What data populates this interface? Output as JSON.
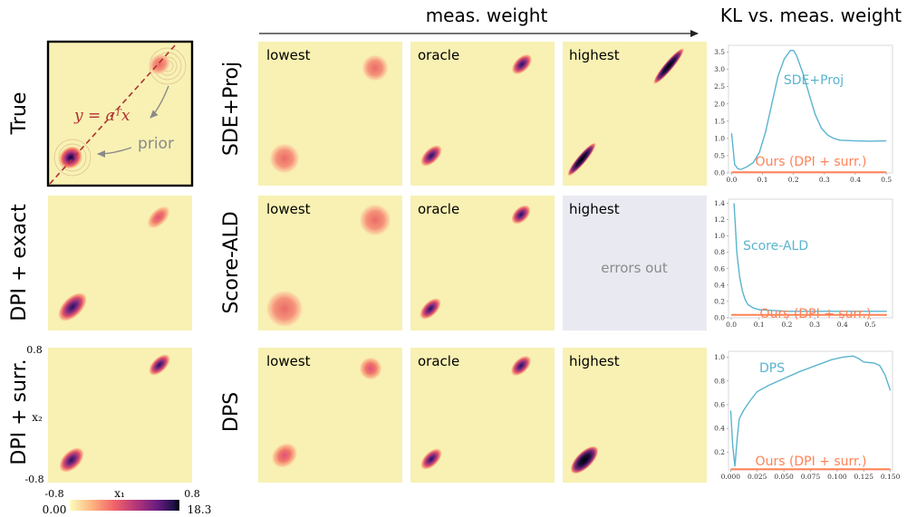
{
  "header": {
    "meas_weight_label": "meas. weight",
    "kl_title": "KL vs. meas. weight"
  },
  "true_panel": {
    "row_label": "True",
    "equation": "y = aᵀx",
    "prior_label": "prior"
  },
  "left_rows": [
    "True",
    "DPI + exact",
    "DPI + surr."
  ],
  "method_rows": [
    "SDE+Proj",
    "Score-ALD",
    "DPS"
  ],
  "column_labels": [
    "lowest",
    "oracle",
    "highest"
  ],
  "error_text": "errors out",
  "axes": {
    "x_label": "x₁",
    "y_label": "x₂",
    "x_min_label": "-0.8",
    "x_max_label": "0.8",
    "y_min_label": "-0.8",
    "y_max_label": "0.8"
  },
  "colorbar": {
    "min_label": "0.00",
    "max_label": "18.3"
  },
  "colors": {
    "panel_bg": "#f8f1b3",
    "error_bg": "#e9e9f2",
    "baseline_line": "#ff8256",
    "method_line": "#5ab4cf",
    "equation_color": "#b03030",
    "annotation_gray": "#8a8a8a"
  },
  "chart_data": [
    {
      "type": "line",
      "title": "",
      "ylim": [
        0,
        3.7
      ],
      "xlim": [
        -0.01,
        0.52
      ],
      "x_ticks": [
        0.0,
        0.1,
        0.2,
        0.3,
        0.4,
        0.5
      ],
      "x_tick_labels": [
        "0.0",
        "0.1",
        "0.2",
        "0.3",
        "0.4",
        "0.5"
      ],
      "y_ticks": [
        0.0,
        0.5,
        1.0,
        1.5,
        2.0,
        2.5,
        3.0,
        3.5
      ],
      "y_tick_labels": [
        "0.0",
        "0.5",
        "1.0",
        "1.5",
        "2.0",
        "2.5",
        "3.0",
        "3.5"
      ],
      "series": [
        {
          "name": "SDE+Proj",
          "x": [
            0.0,
            0.01,
            0.02,
            0.03,
            0.05,
            0.07,
            0.09,
            0.11,
            0.13,
            0.15,
            0.17,
            0.19,
            0.2,
            0.21,
            0.23,
            0.25,
            0.27,
            0.29,
            0.31,
            0.33,
            0.35,
            0.4,
            0.45,
            0.5
          ],
          "y": [
            1.15,
            0.25,
            0.12,
            0.1,
            0.18,
            0.3,
            0.6,
            1.2,
            2.0,
            2.8,
            3.3,
            3.55,
            3.55,
            3.4,
            2.9,
            2.3,
            1.7,
            1.3,
            1.1,
            1.0,
            0.95,
            0.93,
            0.92,
            0.93
          ]
        },
        {
          "name": "Ours (DPI + surr.)",
          "x": [
            0.0,
            0.5
          ],
          "y": [
            0.02,
            0.02
          ]
        }
      ]
    },
    {
      "type": "line",
      "title": "",
      "ylim": [
        0,
        1.45
      ],
      "xlim": [
        -0.01,
        0.58
      ],
      "x_ticks": [
        0.0,
        0.1,
        0.2,
        0.3,
        0.4,
        0.5
      ],
      "x_tick_labels": [
        "0.0",
        "0.1",
        "0.2",
        "0.3",
        "0.4",
        "0.5"
      ],
      "y_ticks": [
        0.0,
        0.2,
        0.4,
        0.6,
        0.8,
        1.0,
        1.2,
        1.4
      ],
      "y_tick_labels": [
        "0.0",
        "0.2",
        "0.4",
        "0.6",
        "0.8",
        "1.0",
        "1.2",
        "1.4"
      ],
      "series": [
        {
          "name": "Score-ALD",
          "x": [
            0.01,
            0.015,
            0.02,
            0.03,
            0.04,
            0.05,
            0.06,
            0.08,
            0.1,
            0.15,
            0.2,
            0.3,
            0.4,
            0.5,
            0.56
          ],
          "y": [
            1.4,
            1.1,
            0.8,
            0.5,
            0.33,
            0.22,
            0.16,
            0.12,
            0.1,
            0.09,
            0.08,
            0.08,
            0.08,
            0.08,
            0.08
          ]
        },
        {
          "name": "Ours (DPI + surr.)",
          "x": [
            0.0,
            0.56
          ],
          "y": [
            0.035,
            0.035
          ]
        }
      ]
    },
    {
      "type": "line",
      "title": "",
      "ylim": [
        0.05,
        1.05
      ],
      "xlim": [
        -0.002,
        0.152
      ],
      "x_ticks": [
        0.0,
        0.025,
        0.05,
        0.075,
        0.1,
        0.125,
        0.15
      ],
      "x_tick_labels": [
        "0.000",
        "0.025",
        "0.050",
        "0.075",
        "0.100",
        "0.125",
        "0.150"
      ],
      "y_ticks": [
        0.2,
        0.4,
        0.6,
        0.8,
        1.0
      ],
      "y_tick_labels": [
        "0.2",
        "0.4",
        "0.6",
        "0.8",
        "1.0"
      ],
      "series": [
        {
          "name": "DPS",
          "x": [
            0.0,
            0.002,
            0.004,
            0.006,
            0.008,
            0.012,
            0.018,
            0.025,
            0.035,
            0.05,
            0.065,
            0.08,
            0.095,
            0.105,
            0.115,
            0.12,
            0.125,
            0.135,
            0.14,
            0.145,
            0.15
          ],
          "y": [
            0.55,
            0.25,
            0.08,
            0.3,
            0.48,
            0.55,
            0.63,
            0.71,
            0.76,
            0.82,
            0.88,
            0.93,
            0.98,
            1.0,
            1.01,
            0.99,
            0.96,
            0.95,
            0.93,
            0.85,
            0.72
          ]
        },
        {
          "name": "Ours (DPI + surr.)",
          "x": [
            0.0,
            0.15
          ],
          "y": [
            0.055,
            0.055
          ]
        }
      ]
    }
  ]
}
